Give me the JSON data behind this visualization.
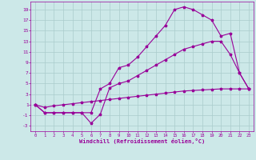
{
  "bg_color": "#cce8e8",
  "line_color": "#990099",
  "grid_color": "#aacccc",
  "xlabel": "Windchill (Refroidissement éolien,°C)",
  "xlabel_color": "#990099",
  "tick_color": "#990099",
  "line1_x": [
    0,
    1,
    2,
    3,
    4,
    5,
    6,
    7,
    8,
    9,
    10,
    11,
    12,
    13,
    14,
    15,
    16,
    17,
    18,
    19,
    20,
    21,
    22,
    23
  ],
  "line1_y": [
    1,
    -0.5,
    -0.5,
    -0.5,
    -0.5,
    -0.5,
    -0.5,
    4,
    5,
    8,
    8.5,
    10,
    12,
    14,
    16,
    19,
    19.5,
    19,
    18,
    17,
    14,
    14.5,
    7,
    4
  ],
  "line2_x": [
    0,
    1,
    2,
    3,
    4,
    5,
    6,
    7,
    8,
    9,
    10,
    11,
    12,
    13,
    14,
    15,
    16,
    17,
    18,
    19,
    20,
    21,
    22,
    23
  ],
  "line2_y": [
    1,
    0.5,
    0.8,
    1.0,
    1.2,
    1.4,
    1.6,
    1.8,
    2.0,
    2.2,
    2.4,
    2.6,
    2.8,
    3.0,
    3.2,
    3.4,
    3.6,
    3.7,
    3.8,
    3.9,
    4.0,
    4.0,
    4.0,
    4.0
  ],
  "line3_x": [
    0,
    1,
    2,
    3,
    4,
    5,
    6,
    7,
    8,
    9,
    10,
    11,
    12,
    13,
    14,
    15,
    16,
    17,
    18,
    19,
    20,
    21,
    22,
    23
  ],
  "line3_y": [
    1,
    -0.5,
    -0.5,
    -0.5,
    -0.5,
    -0.5,
    -2.5,
    -0.8,
    4.2,
    5.0,
    5.5,
    6.5,
    7.5,
    8.5,
    9.5,
    10.5,
    11.5,
    12.0,
    12.5,
    13,
    13,
    10.5,
    7,
    4
  ],
  "yticks": [
    -3,
    -1,
    1,
    3,
    5,
    7,
    9,
    11,
    13,
    15,
    17,
    19
  ],
  "xticks": [
    0,
    1,
    2,
    3,
    4,
    5,
    6,
    7,
    8,
    9,
    10,
    11,
    12,
    13,
    14,
    15,
    16,
    17,
    18,
    19,
    20,
    21,
    22,
    23
  ],
  "ylim": [
    -4,
    20.5
  ],
  "xlim": [
    -0.5,
    23.5
  ]
}
